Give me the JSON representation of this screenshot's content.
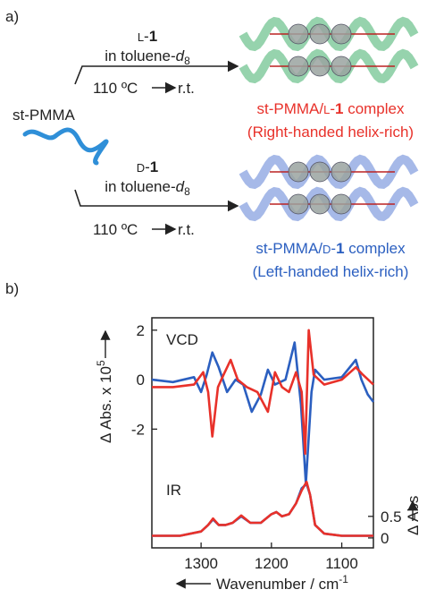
{
  "scheme": {
    "label": "a)",
    "polymer": "st-PMMA",
    "top": {
      "reagent": [
        "L",
        "-",
        "1"
      ],
      "solvent": [
        "in toluene-",
        "d",
        "8"
      ],
      "conditions": [
        "110 ºC",
        "r.t."
      ],
      "product": [
        "st-PMMA/",
        "L",
        "-",
        "1",
        " complex"
      ],
      "note": "(Right-handed helix-rich)"
    },
    "bottom": {
      "reagent": [
        "D",
        "-",
        "1"
      ],
      "solvent": [
        "in toluene-",
        "d",
        "8"
      ],
      "conditions": [
        "110 ºC",
        "r.t."
      ],
      "product": [
        "st-PMMA/",
        "D",
        "-",
        "1",
        " complex"
      ],
      "note": "(Left-handed helix-rich)"
    }
  },
  "chart_data": {
    "type": "line",
    "panel_label": "b)",
    "x_label": [
      "Wavenumber / cm",
      "-1"
    ],
    "y_label": [
      "Δ Abs. x 10",
      "5"
    ],
    "y2_label": "Δ Abs",
    "annotations": [
      "VCD",
      "IR"
    ],
    "xlim": [
      1370,
      1055
    ],
    "xticks": [
      1300,
      1200,
      1100
    ],
    "ylim": [
      -6.8,
      2.5
    ],
    "yticks": [
      2,
      0,
      -2
    ],
    "y2lim": [
      -0.23,
      5.1
    ],
    "y2ticks": [
      0.5,
      0
    ],
    "series": [
      {
        "color": "#2b5fc0",
        "x": [
          1370,
          1340,
          1310,
          1300,
          1292,
          1284,
          1275,
          1263,
          1251,
          1240,
          1228,
          1215,
          1205,
          1195,
          1180,
          1167,
          1158,
          1151,
          1143,
          1138,
          1125,
          1100,
          1080,
          1072,
          1063,
          1055
        ],
        "values": [
          0.0,
          -0.1,
          0.1,
          -0.5,
          0.2,
          1.1,
          0.5,
          -0.5,
          0.0,
          -0.2,
          -1.3,
          -0.6,
          0.4,
          -0.2,
          0.0,
          1.5,
          -1.0,
          -4.2,
          -0.5,
          0.4,
          0.0,
          0.1,
          0.8,
          0.0,
          -0.6,
          -0.9
        ]
      },
      {
        "color": "#e8312a",
        "x": [
          1370,
          1340,
          1310,
          1297,
          1290,
          1284,
          1276,
          1268,
          1258,
          1248,
          1235,
          1220,
          1205,
          1195,
          1185,
          1175,
          1165,
          1157,
          1152,
          1147,
          1140,
          1125,
          1100,
          1080,
          1070,
          1055
        ],
        "values": [
          -0.3,
          -0.3,
          -0.2,
          0.3,
          -0.5,
          -2.3,
          -0.3,
          0.2,
          0.8,
          0.0,
          -0.3,
          -0.5,
          -1.3,
          0.3,
          -0.3,
          -0.5,
          0.3,
          -0.5,
          -3.0,
          2.0,
          0.2,
          -0.2,
          0.0,
          0.5,
          0.2,
          -0.2
        ]
      },
      {
        "color": "#2b5fc0",
        "axis": "y2",
        "x": [
          1370,
          1330,
          1300,
          1290,
          1283,
          1275,
          1265,
          1255,
          1243,
          1230,
          1215,
          1200,
          1193,
          1185,
          1175,
          1165,
          1157,
          1150,
          1145,
          1138,
          1125,
          1100,
          1055
        ],
        "values": [
          0.05,
          0.05,
          0.15,
          0.3,
          0.43,
          0.3,
          0.3,
          0.35,
          0.5,
          0.35,
          0.35,
          0.55,
          0.6,
          0.5,
          0.55,
          0.8,
          1.15,
          1.25,
          1.0,
          0.3,
          0.1,
          0.05,
          0.05
        ]
      },
      {
        "color": "#e8312a",
        "axis": "y2",
        "x": [
          1370,
          1330,
          1300,
          1290,
          1283,
          1275,
          1265,
          1255,
          1243,
          1230,
          1215,
          1200,
          1193,
          1185,
          1175,
          1165,
          1157,
          1150,
          1145,
          1138,
          1125,
          1100,
          1055
        ],
        "values": [
          0.05,
          0.05,
          0.15,
          0.3,
          0.45,
          0.3,
          0.3,
          0.35,
          0.52,
          0.35,
          0.35,
          0.55,
          0.6,
          0.5,
          0.55,
          0.8,
          1.1,
          1.3,
          1.0,
          0.3,
          0.1,
          0.05,
          0.05
        ]
      }
    ]
  }
}
